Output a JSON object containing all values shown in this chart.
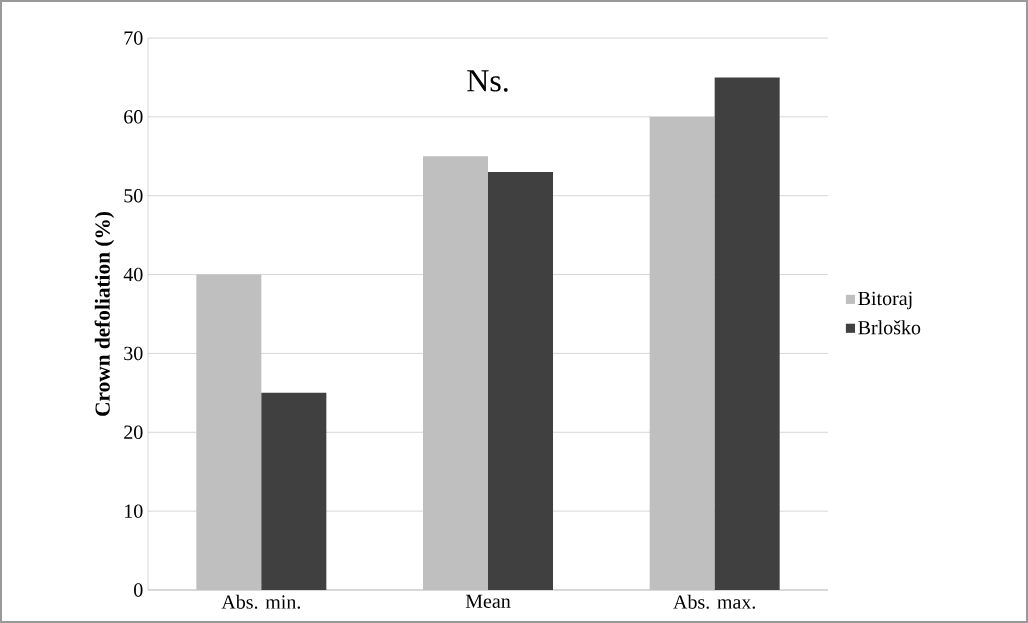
{
  "chart_data": {
    "type": "bar",
    "ylabel": "Crown defoliation (%)",
    "categories": [
      "Abs. min.",
      "Mean",
      "Abs. max."
    ],
    "series": [
      {
        "name": "Bitoraj",
        "color": "#bfbfbf",
        "values": [
          40,
          55,
          60
        ]
      },
      {
        "name": "Brloško",
        "color": "#404040",
        "values": [
          25,
          53,
          65
        ]
      }
    ],
    "ylim": [
      0,
      70
    ],
    "yticks": [
      0,
      10,
      20,
      30,
      40,
      50,
      60,
      70
    ],
    "grid": "y",
    "legend": "right",
    "annotations": [
      "Ns."
    ]
  }
}
